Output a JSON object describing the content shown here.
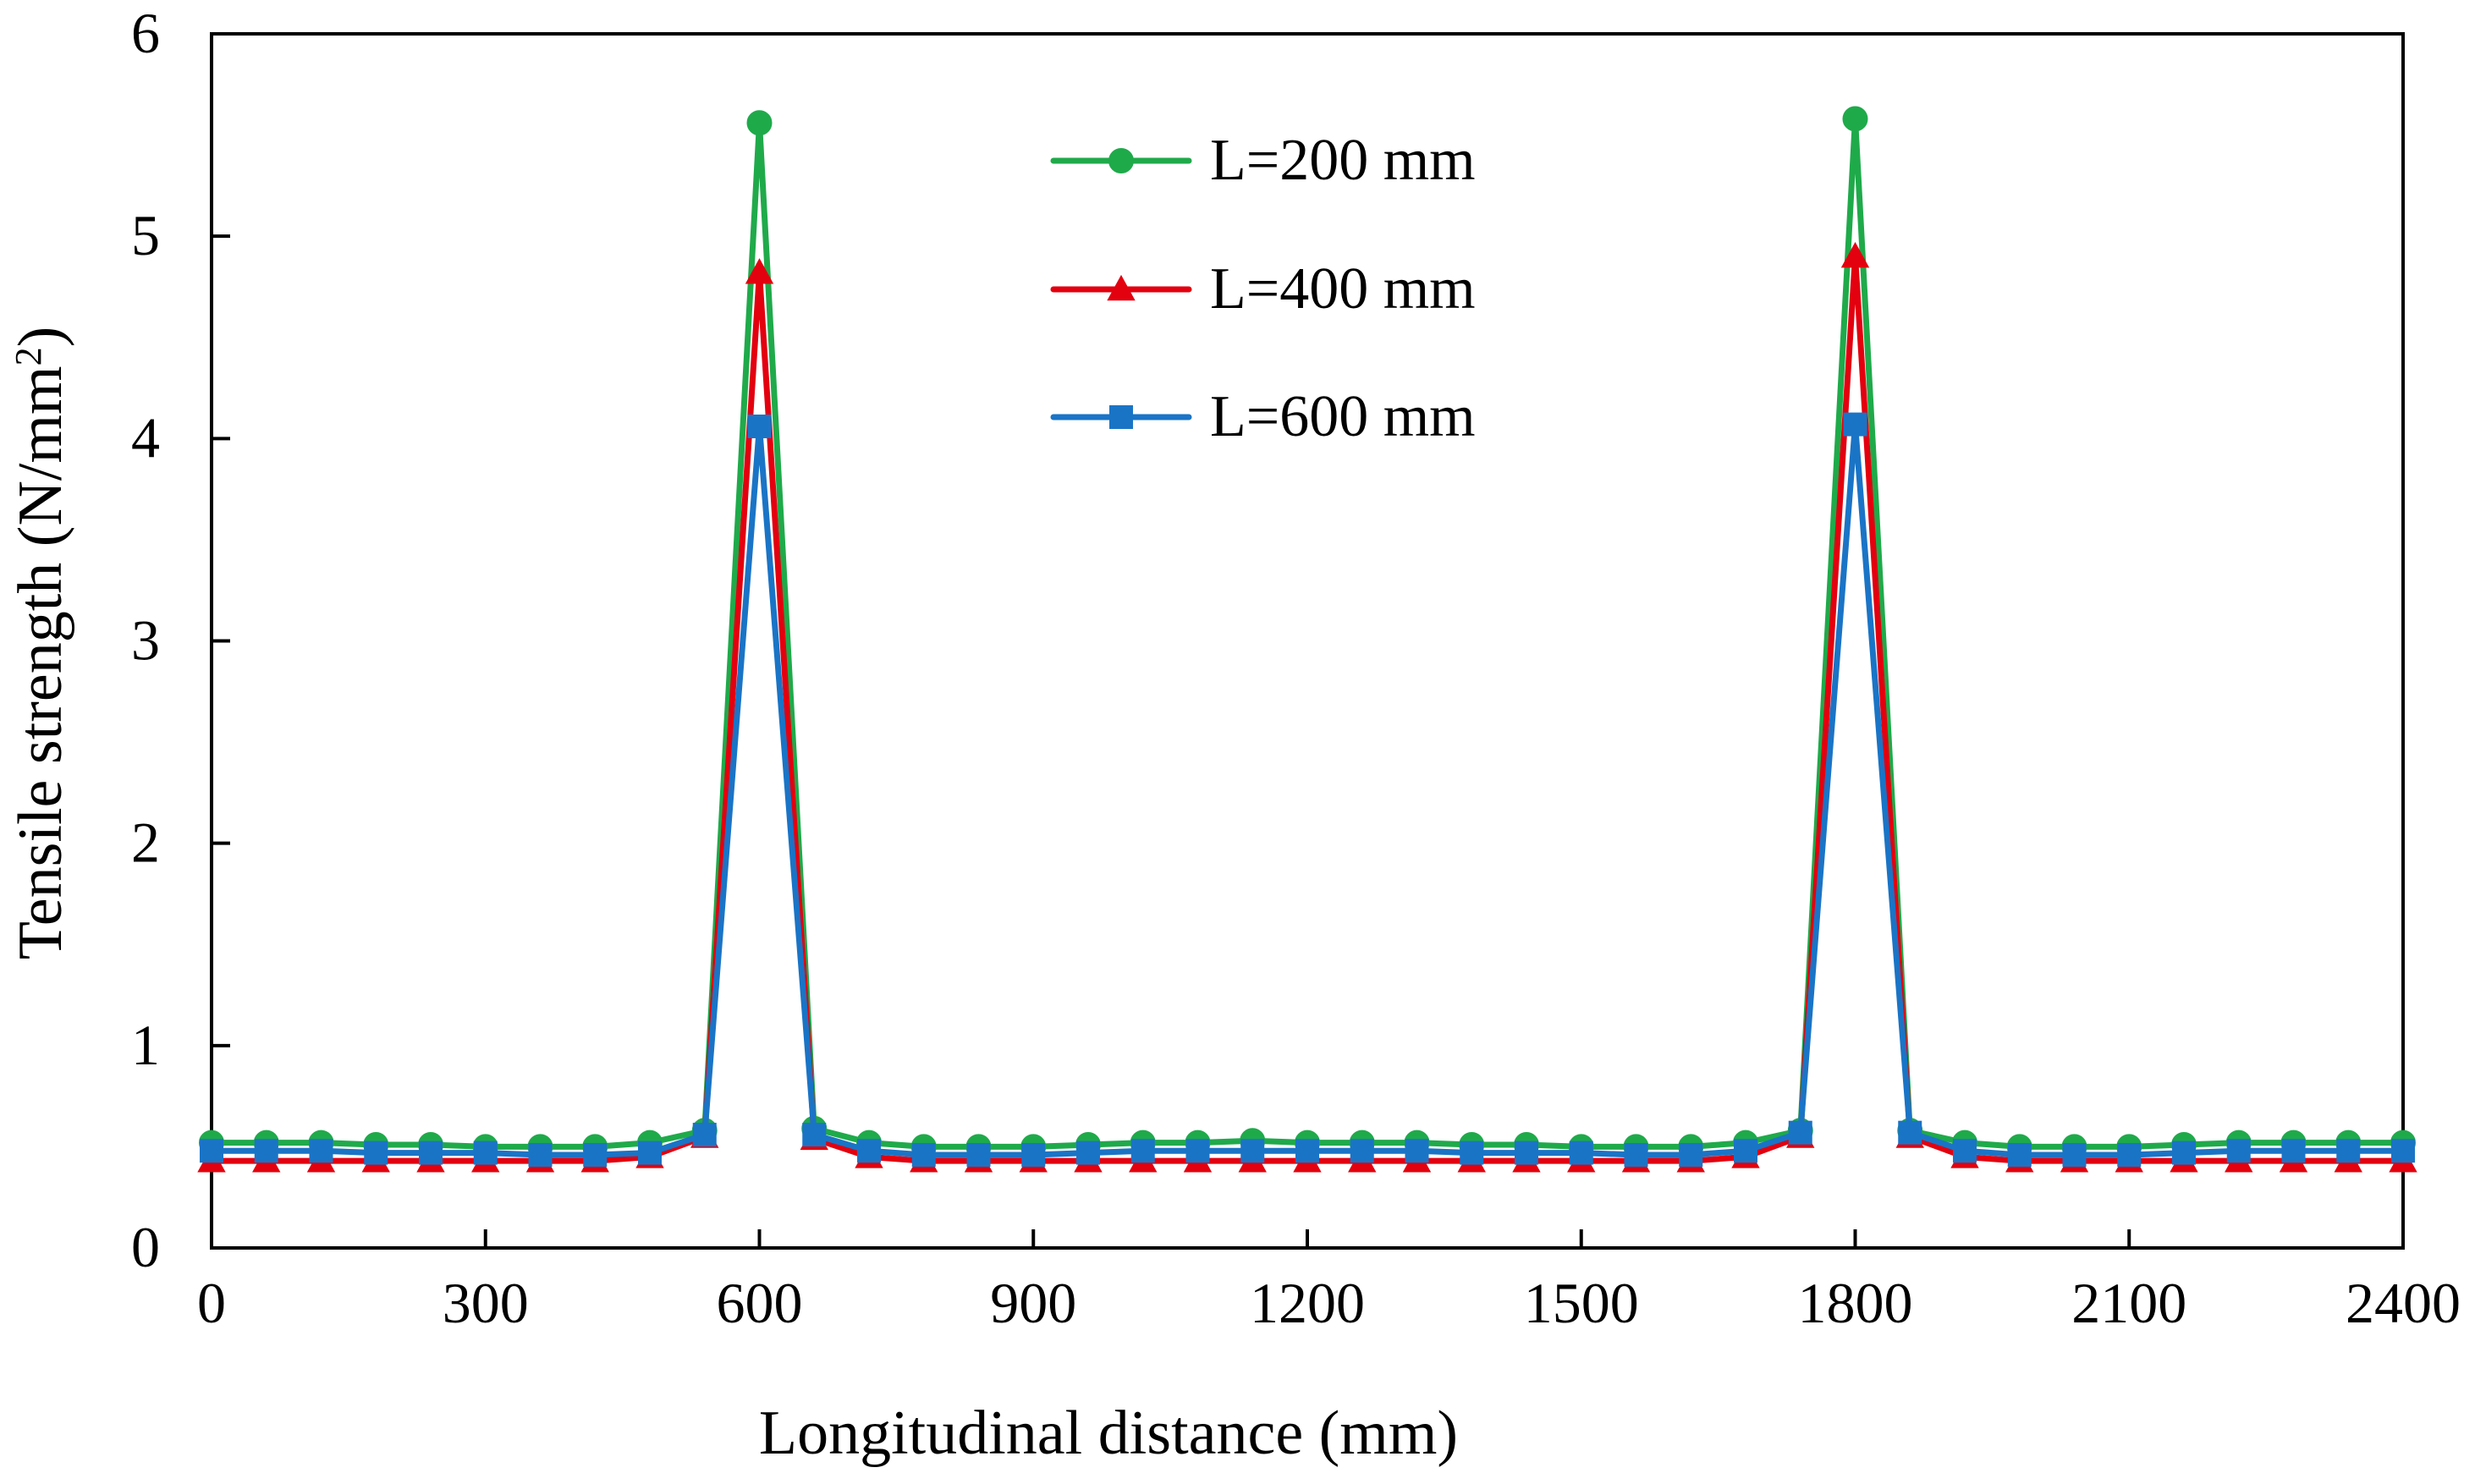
{
  "chart_data": {
    "type": "line",
    "title": "",
    "xlabel": "Longitudinal distance (mm)",
    "ylabel": {
      "prefix": "Tensile strength (N/mm",
      "superscript": "2",
      "suffix": ")"
    },
    "xlim": [
      0,
      2400
    ],
    "ylim": [
      0,
      6
    ],
    "xticks": [
      "0",
      "300",
      "600",
      "900",
      "1200",
      "1500",
      "1800",
      "2100",
      "2400"
    ],
    "yticks": [
      "0",
      "1",
      "2",
      "3",
      "4",
      "5",
      "6"
    ],
    "grid": false,
    "legend_position": "top-center",
    "x": [
      0,
      60,
      120,
      180,
      240,
      300,
      360,
      420,
      480,
      540,
      600,
      660,
      720,
      780,
      840,
      900,
      960,
      1020,
      1080,
      1140,
      1200,
      1260,
      1320,
      1380,
      1440,
      1500,
      1560,
      1620,
      1680,
      1740,
      1800,
      1860,
      1920,
      1980,
      2040,
      2100,
      2160,
      2220,
      2280,
      2340,
      2400
    ],
    "series": [
      {
        "name": "L=200 mm",
        "color": "#1faa4a",
        "marker": "circle",
        "values": [
          0.52,
          0.52,
          0.52,
          0.51,
          0.51,
          0.5,
          0.5,
          0.5,
          0.52,
          0.58,
          5.56,
          0.59,
          0.52,
          0.5,
          0.5,
          0.5,
          0.51,
          0.52,
          0.52,
          0.53,
          0.52,
          0.52,
          0.52,
          0.51,
          0.51,
          0.5,
          0.5,
          0.5,
          0.52,
          0.58,
          5.58,
          0.58,
          0.52,
          0.5,
          0.5,
          0.5,
          0.51,
          0.52,
          0.52,
          0.52,
          0.52
        ]
      },
      {
        "name": "L=400 mm",
        "color": "#e3000f",
        "marker": "triangle",
        "values": [
          0.43,
          0.43,
          0.43,
          0.43,
          0.43,
          0.43,
          0.43,
          0.43,
          0.45,
          0.55,
          4.82,
          0.54,
          0.45,
          0.43,
          0.43,
          0.43,
          0.43,
          0.43,
          0.43,
          0.43,
          0.43,
          0.43,
          0.43,
          0.43,
          0.43,
          0.43,
          0.43,
          0.43,
          0.45,
          0.55,
          4.9,
          0.55,
          0.45,
          0.43,
          0.43,
          0.43,
          0.43,
          0.43,
          0.43,
          0.43,
          0.43
        ]
      },
      {
        "name": "L=600 mm",
        "color": "#1a74c6",
        "marker": "square",
        "values": [
          0.48,
          0.48,
          0.48,
          0.47,
          0.47,
          0.47,
          0.46,
          0.46,
          0.47,
          0.56,
          4.06,
          0.56,
          0.48,
          0.46,
          0.46,
          0.46,
          0.47,
          0.48,
          0.48,
          0.48,
          0.48,
          0.48,
          0.48,
          0.47,
          0.47,
          0.47,
          0.46,
          0.46,
          0.48,
          0.57,
          4.07,
          0.57,
          0.48,
          0.46,
          0.46,
          0.46,
          0.47,
          0.48,
          0.48,
          0.48,
          0.48
        ]
      }
    ]
  }
}
